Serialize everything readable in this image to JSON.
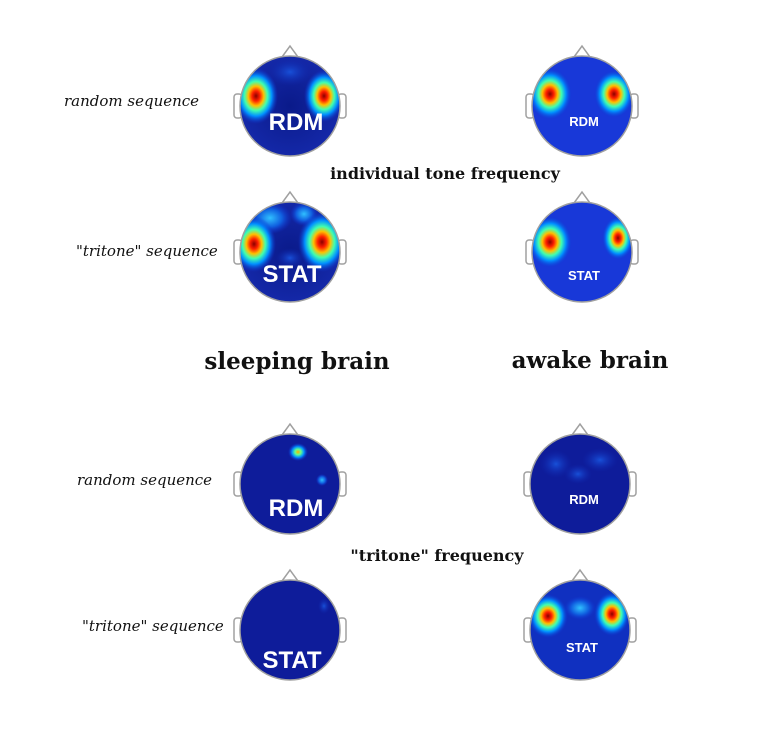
{
  "figure": {
    "row_labels": {
      "random": "random sequence",
      "tritone": "\"tritone\" sequence"
    },
    "section_labels": {
      "top": "individual tone frequency",
      "bottom": "\"tritone\" frequency"
    },
    "column_titles": {
      "sleeping": "sleeping brain",
      "awake": "awake brain"
    },
    "condition_labels": {
      "random": "RDM",
      "tritone": "STAT"
    },
    "colors": {
      "background_blue": "#1020a0",
      "high_activation": "#c00000",
      "head_outline": "#a0a0a0"
    }
  }
}
